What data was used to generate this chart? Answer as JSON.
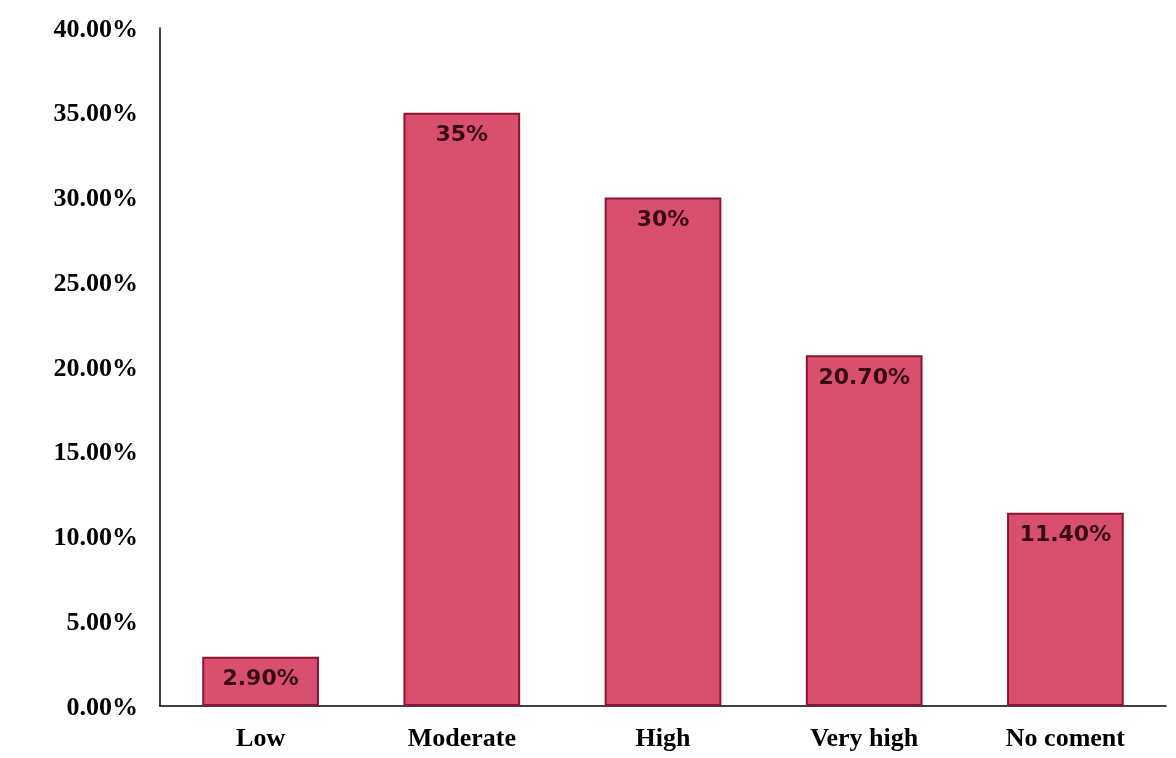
{
  "chart_data": {
    "type": "bar",
    "categories": [
      "Low",
      "Moderate",
      "High",
      "Very high",
      "No coment"
    ],
    "values": [
      2.9,
      35,
      30,
      20.7,
      11.4
    ],
    "value_labels": [
      "2.90%",
      "35%",
      "30%",
      "20.70%",
      "11.40%"
    ],
    "color": "#d9506f",
    "ylim": [
      0,
      40
    ],
    "yticks": [
      {
        "value": 0,
        "label": "0.00%"
      },
      {
        "value": 5,
        "label": "5.00%"
      },
      {
        "value": 10,
        "label": "10.00%"
      },
      {
        "value": 15,
        "label": "15.00%"
      },
      {
        "value": 20,
        "label": "20.00%"
      },
      {
        "value": 25,
        "label": "25.00%"
      },
      {
        "value": 30,
        "label": "30.00%"
      },
      {
        "value": 35,
        "label": "35.00%"
      },
      {
        "value": 40,
        "label": "40.00%"
      }
    ],
    "grid": false
  }
}
